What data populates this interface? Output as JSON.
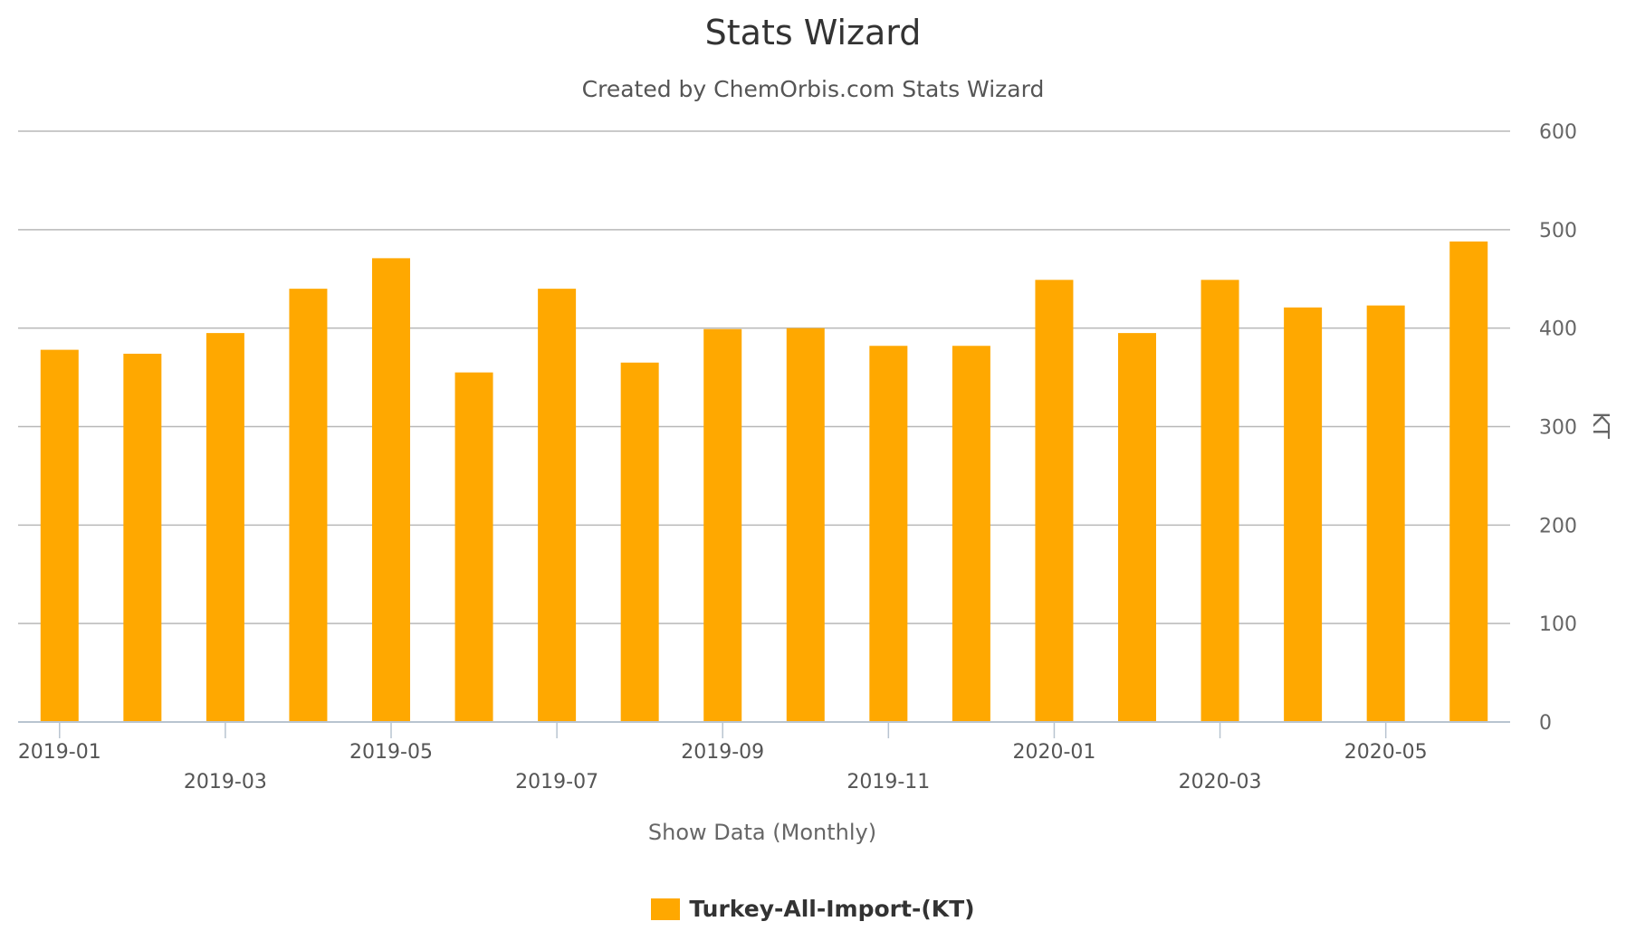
{
  "chart_data": {
    "type": "bar",
    "title": "Stats Wizard",
    "subtitle": "Created by ChemOrbis.com Stats Wizard",
    "xlabel": "Show Data (Monthly)",
    "ylabel": "KT",
    "categories": [
      "2019-01",
      "2019-02",
      "2019-03",
      "2019-04",
      "2019-05",
      "2019-06",
      "2019-07",
      "2019-08",
      "2019-09",
      "2019-10",
      "2019-11",
      "2019-12",
      "2020-01",
      "2020-02",
      "2020-03",
      "2020-04",
      "2020-05",
      "2020-06"
    ],
    "x_tick_labels": [
      "2019-01",
      "2019-03",
      "2019-05",
      "2019-07",
      "2019-09",
      "2019-11",
      "2020-01",
      "2020-03",
      "2020-05"
    ],
    "series": [
      {
        "name": "Turkey-All-Import-(KT)",
        "color": "#ffa800",
        "values": [
          378,
          374,
          395,
          440,
          471,
          355,
          440,
          365,
          399,
          400,
          382,
          382,
          449,
          395,
          449,
          421,
          423,
          488
        ]
      }
    ],
    "ylim": [
      0,
      600
    ],
    "yticks": [
      0,
      100,
      200,
      300,
      400,
      500,
      600
    ],
    "y_axis_side": "right",
    "grid": true,
    "legend": "bottom-center"
  }
}
